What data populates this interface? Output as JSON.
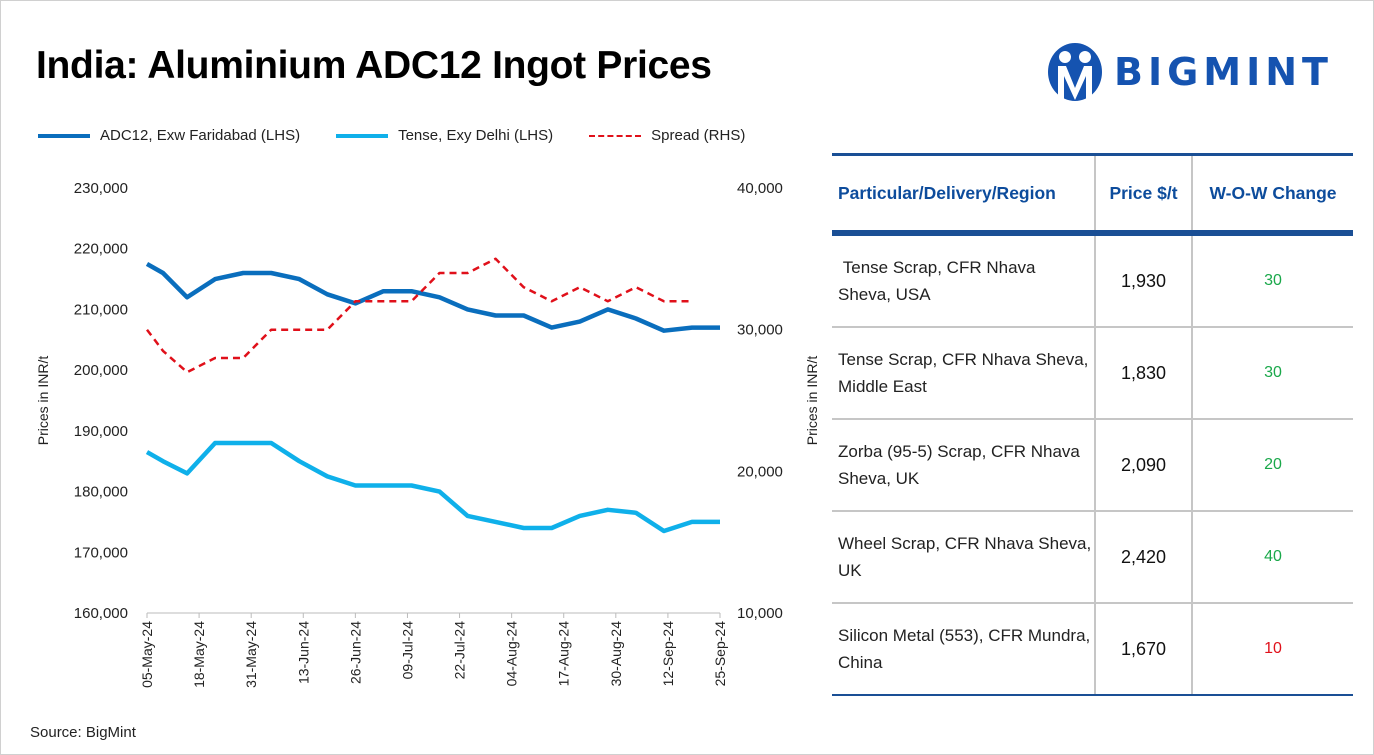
{
  "title": "India: Aluminium ADC12 Ingot Prices",
  "logo_text": "BIGMINT",
  "source": "Source: BigMint",
  "colors": {
    "adc12": "#0a6ebd",
    "tense": "#0fb0ea",
    "spread": "#e0101a",
    "brand": "#1553b0",
    "positive": "#1aa84a",
    "negative": "#e0101a"
  },
  "chart_data": {
    "type": "line",
    "title": "India: Aluminium ADC12 Ingot Prices",
    "ylabel": "Prices in INR/t",
    "y2label": "Prices in INR/t",
    "ylim": [
      160000,
      230000
    ],
    "y2lim": [
      10000,
      40000
    ],
    "yticks": [
      "160,000",
      "170,000",
      "180,000",
      "190,000",
      "200,000",
      "210,000",
      "220,000",
      "230,000"
    ],
    "y2ticks": [
      "10,000",
      "20,000",
      "30,000",
      "40,000"
    ],
    "xticks": [
      "05-May-24",
      "18-May-24",
      "31-May-24",
      "13-Jun-24",
      "26-Jun-24",
      "09-Jul-24",
      "22-Jul-24",
      "04-Aug-24",
      "17-Aug-24",
      "30-Aug-24",
      "12-Sep-24",
      "25-Sep-24"
    ],
    "xlim": [
      "2024-05-05",
      "2024-09-25"
    ],
    "legend_position": "top",
    "x": [
      "2024-05-05",
      "2024-05-09",
      "2024-05-15",
      "2024-05-22",
      "2024-05-29",
      "2024-06-05",
      "2024-06-12",
      "2024-06-19",
      "2024-06-26",
      "2024-07-03",
      "2024-07-10",
      "2024-07-17",
      "2024-07-24",
      "2024-07-31",
      "2024-08-07",
      "2024-08-14",
      "2024-08-21",
      "2024-08-28",
      "2024-09-04",
      "2024-09-11",
      "2024-09-18",
      "2024-09-25"
    ],
    "series": [
      {
        "name": "ADC12, Exw Faridabad (LHS)",
        "axis": "left",
        "style": "solid",
        "values": [
          217500,
          216000,
          212000,
          215000,
          216000,
          216000,
          215000,
          212500,
          211000,
          213000,
          213000,
          212000,
          210000,
          209000,
          209000,
          207000,
          208000,
          210000,
          208500,
          206500,
          207000,
          207000
        ]
      },
      {
        "name": "Tense, Exy Delhi (LHS)",
        "axis": "left",
        "style": "solid",
        "values": [
          186500,
          185000,
          183000,
          188000,
          188000,
          188000,
          185000,
          182500,
          181000,
          181000,
          181000,
          180000,
          176000,
          175000,
          174000,
          174000,
          176000,
          177000,
          176500,
          173500,
          175000,
          175000
        ]
      },
      {
        "name": "Spread (RHS)",
        "axis": "right",
        "style": "dashed",
        "values": [
          30000,
          28500,
          27000,
          28000,
          28000,
          30000,
          30000,
          30000,
          32000,
          32000,
          32000,
          34000,
          34000,
          35000,
          33000,
          32000,
          33000,
          32000,
          33000,
          32000,
          32000,
          null
        ]
      }
    ]
  },
  "table": {
    "headers": [
      "Particular/Delivery/Region",
      "Price $/t",
      "W-O-W Change"
    ],
    "rows": [
      {
        "particular": " Tense Scrap, CFR Nhava Sheva, USA",
        "price": "1,930",
        "change": "30",
        "direction": "up"
      },
      {
        "particular": "Tense Scrap, CFR Nhava Sheva, Middle East",
        "price": "1,830",
        "change": "30",
        "direction": "up"
      },
      {
        "particular": "Zorba (95-5) Scrap, CFR Nhava Sheva, UK",
        "price": "2,090",
        "change": "20",
        "direction": "up"
      },
      {
        "particular": "Wheel Scrap, CFR Nhava Sheva, UK",
        "price": "2,420",
        "change": "40",
        "direction": "up"
      },
      {
        "particular": "Silicon Metal (553), CFR Mundra, China",
        "price": "1,670",
        "change": "10",
        "direction": "down"
      }
    ]
  }
}
